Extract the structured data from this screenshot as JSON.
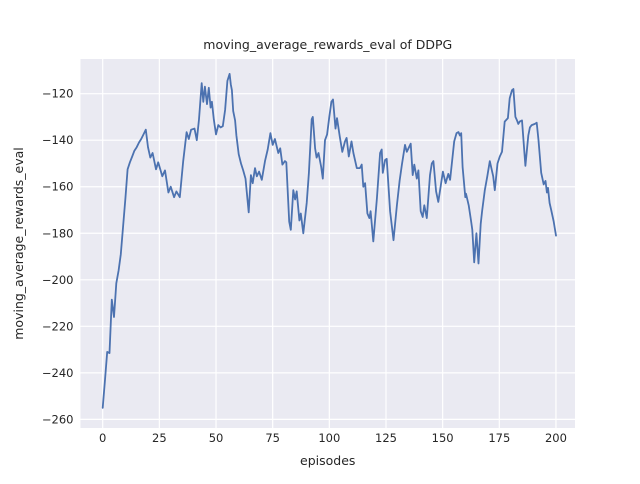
{
  "chart_data": {
    "type": "line",
    "title": "moving_average_rewards_eval of DDPG",
    "xlabel": "episodes",
    "ylabel": "moving_average_rewards_eval",
    "x_ticks": [
      0,
      25,
      50,
      75,
      100,
      125,
      150,
      175,
      200
    ],
    "y_ticks": [
      -120,
      -140,
      -160,
      -180,
      -200,
      -220,
      -240,
      -260
    ],
    "xlim": [
      -9.8,
      208.4
    ],
    "ylim": [
      -263.7,
      -105.1
    ],
    "grid": true,
    "legend": false,
    "colors": {
      "line": "#4C72B0",
      "axes_background": "#EAEAF2",
      "grid": "#FFFFFF",
      "figure_background": "#FFFFFF",
      "text": "#262626"
    },
    "series": [
      {
        "name": "moving_average_rewards_eval",
        "points": [
          [
            0,
            -255
          ],
          [
            1,
            -243
          ],
          [
            2,
            -231
          ],
          [
            3,
            -231.5
          ],
          [
            4,
            -208.5
          ],
          [
            5,
            -216
          ],
          [
            6,
            -201.5
          ],
          [
            7,
            -196
          ],
          [
            8,
            -189
          ],
          [
            9,
            -177
          ],
          [
            10,
            -165
          ],
          [
            11,
            -152.5
          ],
          [
            12,
            -149.5
          ],
          [
            13,
            -147
          ],
          [
            14,
            -144.5
          ],
          [
            15,
            -143
          ],
          [
            16,
            -141
          ],
          [
            17,
            -139.5
          ],
          [
            18,
            -137.5
          ],
          [
            19,
            -135.5
          ],
          [
            20,
            -143
          ],
          [
            21,
            -147.5
          ],
          [
            22,
            -145.5
          ],
          [
            23.5,
            -152.5
          ],
          [
            24.5,
            -149.5
          ],
          [
            26.3,
            -155.5
          ],
          [
            27.5,
            -153
          ],
          [
            29,
            -162.5
          ],
          [
            30,
            -160
          ],
          [
            31.5,
            -164.5
          ],
          [
            32.5,
            -162
          ],
          [
            34,
            -164.5
          ],
          [
            35.5,
            -149
          ],
          [
            37,
            -136.5
          ],
          [
            38,
            -139.5
          ],
          [
            39,
            -135.5
          ],
          [
            40.5,
            -135
          ],
          [
            41.5,
            -140
          ],
          [
            42.5,
            -131
          ],
          [
            43.7,
            -115.5
          ],
          [
            44.4,
            -123.5
          ],
          [
            45.1,
            -117
          ],
          [
            46,
            -124.5
          ],
          [
            46.8,
            -117.5
          ],
          [
            47.6,
            -126
          ],
          [
            48.2,
            -123.5
          ],
          [
            49,
            -131
          ],
          [
            50,
            -137.5
          ],
          [
            51,
            -133.5
          ],
          [
            52,
            -134.5
          ],
          [
            53,
            -134
          ],
          [
            54,
            -127
          ],
          [
            55,
            -114.5
          ],
          [
            56,
            -111.5
          ],
          [
            56.5,
            -116
          ],
          [
            57,
            -118.5
          ],
          [
            57.6,
            -127.5
          ],
          [
            58.4,
            -131.5
          ],
          [
            59,
            -138
          ],
          [
            60,
            -146
          ],
          [
            61,
            -150
          ],
          [
            62,
            -153
          ],
          [
            63,
            -156.5
          ],
          [
            64.4,
            -171
          ],
          [
            65.4,
            -155
          ],
          [
            66.2,
            -158.5
          ],
          [
            67.2,
            -152
          ],
          [
            68,
            -155.5
          ],
          [
            69,
            -153.5
          ],
          [
            70.2,
            -157
          ],
          [
            71.6,
            -149
          ],
          [
            72.8,
            -144
          ],
          [
            74,
            -137
          ],
          [
            75,
            -142
          ],
          [
            76,
            -139.5
          ],
          [
            77.5,
            -145.5
          ],
          [
            78.3,
            -143.5
          ],
          [
            79.3,
            -150.5
          ],
          [
            80.4,
            -149
          ],
          [
            81,
            -149.5
          ],
          [
            82.3,
            -175
          ],
          [
            83,
            -178.5
          ],
          [
            84.1,
            -161.5
          ],
          [
            84.9,
            -165.5
          ],
          [
            85.6,
            -162
          ],
          [
            86.8,
            -174.5
          ],
          [
            87.4,
            -171.5
          ],
          [
            88.5,
            -180
          ],
          [
            90,
            -167
          ],
          [
            91,
            -154
          ],
          [
            92.2,
            -131
          ],
          [
            92.7,
            -130
          ],
          [
            93.7,
            -143.5
          ],
          [
            94.4,
            -147.5
          ],
          [
            95.2,
            -145.5
          ],
          [
            96.4,
            -151.5
          ],
          [
            97.1,
            -156.5
          ],
          [
            98.1,
            -140
          ],
          [
            99,
            -137.5
          ],
          [
            100,
            -130
          ],
          [
            100.9,
            -123.5
          ],
          [
            101.6,
            -122.5
          ],
          [
            102.7,
            -135
          ],
          [
            103.4,
            -130.5
          ],
          [
            104.6,
            -138.5
          ],
          [
            105.7,
            -145
          ],
          [
            106.9,
            -140.5
          ],
          [
            107.6,
            -139
          ],
          [
            108.6,
            -147
          ],
          [
            109.8,
            -140.5
          ],
          [
            110.6,
            -145.5
          ],
          [
            112.1,
            -152
          ],
          [
            113.5,
            -152
          ],
          [
            114.3,
            -150.5
          ],
          [
            115,
            -160
          ],
          [
            115.8,
            -158.5
          ],
          [
            116.8,
            -171.5
          ],
          [
            117.7,
            -173.5
          ],
          [
            118.2,
            -170.5
          ],
          [
            119.4,
            -183.5
          ],
          [
            121,
            -165
          ],
          [
            122.4,
            -145.5
          ],
          [
            123.1,
            -144
          ],
          [
            123.6,
            -154
          ],
          [
            124.6,
            -148.5
          ],
          [
            125.3,
            -148
          ],
          [
            126.8,
            -170.5
          ],
          [
            128.3,
            -183
          ],
          [
            129.8,
            -168
          ],
          [
            131,
            -157.5
          ],
          [
            132,
            -150.5
          ],
          [
            133.4,
            -142
          ],
          [
            134.2,
            -145
          ],
          [
            135.9,
            -141.5
          ],
          [
            136.8,
            -155
          ],
          [
            137.5,
            -150.5
          ],
          [
            138.6,
            -156.5
          ],
          [
            139.3,
            -153
          ],
          [
            140.3,
            -170.5
          ],
          [
            141.2,
            -173
          ],
          [
            141.9,
            -168
          ],
          [
            143,
            -173.5
          ],
          [
            144.4,
            -155
          ],
          [
            145.2,
            -150
          ],
          [
            145.9,
            -149
          ],
          [
            147.1,
            -162
          ],
          [
            148.1,
            -166.5
          ],
          [
            150.1,
            -153.5
          ],
          [
            151.3,
            -158.5
          ],
          [
            152.5,
            -154.5
          ],
          [
            153.3,
            -157
          ],
          [
            155.1,
            -140.5
          ],
          [
            156.1,
            -137
          ],
          [
            157,
            -136.5
          ],
          [
            157.6,
            -138
          ],
          [
            158.2,
            -137
          ],
          [
            158.8,
            -151.5
          ],
          [
            160,
            -164.5
          ],
          [
            160.3,
            -163
          ],
          [
            161.5,
            -168
          ],
          [
            162.5,
            -174.5
          ],
          [
            163.1,
            -178.5
          ],
          [
            163.9,
            -192.5
          ],
          [
            164.9,
            -180
          ],
          [
            165.8,
            -193
          ],
          [
            166.8,
            -176
          ],
          [
            167.4,
            -170.5
          ],
          [
            168.6,
            -161.5
          ],
          [
            169.7,
            -155.5
          ],
          [
            170.8,
            -149
          ],
          [
            172.3,
            -155.5
          ],
          [
            173,
            -161.5
          ],
          [
            174.2,
            -150
          ],
          [
            175.2,
            -147
          ],
          [
            176.2,
            -145
          ],
          [
            177.4,
            -132
          ],
          [
            178.8,
            -130.5
          ],
          [
            179.6,
            -122
          ],
          [
            180.6,
            -118.5
          ],
          [
            181.2,
            -118
          ],
          [
            182.1,
            -130
          ],
          [
            182.8,
            -131.5
          ],
          [
            183.4,
            -133
          ],
          [
            184,
            -132
          ],
          [
            185,
            -131.5
          ],
          [
            186.5,
            -151
          ],
          [
            187.8,
            -138
          ],
          [
            188.5,
            -134.5
          ],
          [
            189.3,
            -133.5
          ],
          [
            190.7,
            -133
          ],
          [
            191.5,
            -132.5
          ],
          [
            192.3,
            -140
          ],
          [
            193.5,
            -154
          ],
          [
            194.6,
            -159
          ],
          [
            195.4,
            -157.5
          ],
          [
            196,
            -162.5
          ],
          [
            196.5,
            -160.5
          ],
          [
            197.2,
            -167
          ],
          [
            197.9,
            -170
          ],
          [
            199,
            -175
          ],
          [
            200,
            -181
          ]
        ]
      }
    ]
  }
}
